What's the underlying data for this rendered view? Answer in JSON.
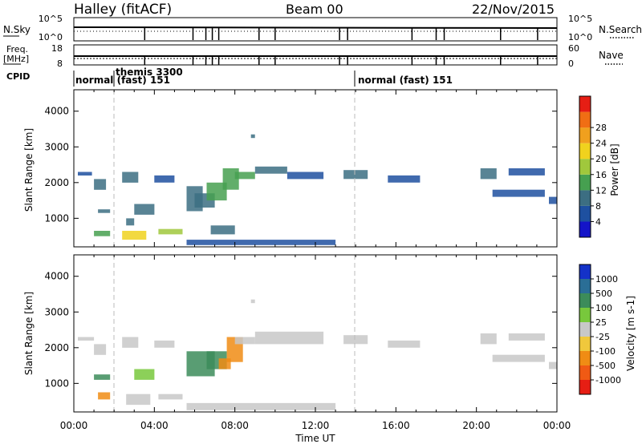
{
  "header": {
    "radar": "Halley (fitACF)",
    "beam": "Beam 00",
    "date": "22/Nov/2015"
  },
  "top_panels": {
    "nsky_label": "N.Sky",
    "nsearch_label": "N.Search",
    "nsky_ticks": [
      "10^5",
      "10^0"
    ],
    "nsearch_ticks": [
      "10^5",
      "10^0"
    ],
    "freq_label_1": "Freq.",
    "freq_label_2": "[MHz]",
    "freq_ticks": [
      "18",
      "8"
    ],
    "nave_label": "Nave",
    "nave_ticks": [
      "60",
      "0"
    ],
    "cpid_label": "CPID",
    "cpid_segments": [
      {
        "label": "normal (fast) 151",
        "start": "00:00",
        "end": "02:00"
      },
      {
        "label": "themis 3300",
        "start": "02:00",
        "end": "14:00"
      },
      {
        "label": "normal (fast) 151",
        "start": "14:00",
        "end": "24:00"
      }
    ],
    "cpid_text_a": "normal (fast) 151",
    "cpid_text_b": "themis 3300",
    "cpid_text_c": "normal (fast) 151"
  },
  "power_colorbar": {
    "label": "Power [dB]",
    "ticks": [
      "4",
      "8",
      "12",
      "16",
      "20",
      "24",
      "28"
    ],
    "colors": [
      "#1414c8",
      "#1e50a0",
      "#3c6e82",
      "#46a050",
      "#a0c83c",
      "#f0d21e",
      "#f0a01e",
      "#f06e14",
      "#e61e14"
    ]
  },
  "velocity_colorbar": {
    "label": "Velocity [m s-1]",
    "ticks": [
      "1000",
      "500",
      "100",
      "25",
      "-25",
      "-100",
      "-500",
      "-1000"
    ],
    "colors": [
      "#1432c8",
      "#2a6e96",
      "#3c8c5a",
      "#78c83c",
      "#c8c8c8",
      "#f0c83c",
      "#f08c14",
      "#f05a14",
      "#e61e14"
    ]
  },
  "chart_data": [
    {
      "type": "heatmap",
      "title": "",
      "xlabel": "Time UT",
      "ylabel": "Slant Range [km]",
      "xticks": [
        "00:00",
        "04:00",
        "08:00",
        "12:00",
        "16:00",
        "20:00",
        "00:00"
      ],
      "yticks": [
        "1000",
        "2000",
        "3000",
        "4000"
      ],
      "xlim_hours": [
        0,
        24
      ],
      "ylim": [
        200,
        4600
      ],
      "quantity": "Power [dB]",
      "cells": [
        [
          0.2,
          0.9,
          2300,
          2200,
          6
        ],
        [
          1.0,
          1.6,
          2100,
          1800,
          8
        ],
        [
          1.2,
          1.8,
          1250,
          1150,
          10
        ],
        [
          1.0,
          1.8,
          650,
          500,
          14
        ],
        [
          2.4,
          3.2,
          2300,
          2000,
          8
        ],
        [
          2.4,
          3.6,
          650,
          400,
          22
        ],
        [
          2.6,
          3.0,
          1000,
          800,
          10
        ],
        [
          3.0,
          4.0,
          1400,
          1100,
          9
        ],
        [
          4.0,
          5.0,
          2200,
          2000,
          7
        ],
        [
          4.2,
          5.4,
          700,
          550,
          18
        ],
        [
          5.6,
          6.4,
          1900,
          1200,
          11
        ],
        [
          6.0,
          7.0,
          1700,
          1300,
          9
        ],
        [
          6.6,
          7.6,
          2000,
          1500,
          12
        ],
        [
          6.8,
          8.0,
          800,
          550,
          10
        ],
        [
          7.4,
          8.2,
          2400,
          1800,
          14
        ],
        [
          8.0,
          9.0,
          2300,
          2100,
          12
        ],
        [
          8.8,
          9.0,
          3350,
          3250,
          9
        ],
        [
          9.0,
          10.6,
          2450,
          2250,
          8
        ],
        [
          10.6,
          12.4,
          2300,
          2100,
          7
        ],
        [
          13.4,
          14.6,
          2350,
          2100,
          8
        ],
        [
          15.6,
          17.2,
          2200,
          2000,
          6
        ],
        [
          20.2,
          21.0,
          2400,
          2100,
          8
        ],
        [
          21.6,
          23.4,
          2400,
          2200,
          7
        ],
        [
          20.8,
          23.4,
          1800,
          1600,
          6
        ],
        [
          23.6,
          24.0,
          1600,
          1400,
          7
        ],
        [
          5.6,
          13.0,
          400,
          250,
          4
        ]
      ]
    },
    {
      "type": "heatmap",
      "title": "",
      "xlabel": "Time UT",
      "ylabel": "Slant Range [km]",
      "xticks": [
        "00:00",
        "04:00",
        "08:00",
        "12:00",
        "16:00",
        "20:00",
        "00:00"
      ],
      "yticks": [
        "1000",
        "2000",
        "3000",
        "4000"
      ],
      "xlim_hours": [
        0,
        24
      ],
      "ylim": [
        200,
        4600
      ],
      "quantity": "Velocity [m s-1]",
      "cells": [
        [
          0.2,
          1.0,
          2300,
          2200,
          0
        ],
        [
          1.0,
          1.6,
          2100,
          1800,
          0
        ],
        [
          1.0,
          1.8,
          1250,
          1100,
          120
        ],
        [
          1.2,
          1.8,
          750,
          550,
          -200
        ],
        [
          2.4,
          3.2,
          2300,
          2000,
          0
        ],
        [
          2.6,
          3.8,
          700,
          400,
          0
        ],
        [
          3.0,
          4.0,
          1400,
          1100,
          60
        ],
        [
          4.0,
          5.0,
          2200,
          2000,
          0
        ],
        [
          4.2,
          5.4,
          700,
          550,
          0
        ],
        [
          5.6,
          7.0,
          1900,
          1200,
          300
        ],
        [
          6.6,
          7.6,
          1900,
          1400,
          250
        ],
        [
          7.2,
          7.8,
          1700,
          1400,
          -150
        ],
        [
          7.6,
          8.4,
          2300,
          1600,
          -350
        ],
        [
          8.0,
          9.0,
          2300,
          2100,
          0
        ],
        [
          8.8,
          9.0,
          3350,
          3250,
          0
        ],
        [
          9.0,
          12.4,
          2450,
          2100,
          0
        ],
        [
          13.4,
          14.6,
          2350,
          2100,
          0
        ],
        [
          15.6,
          17.2,
          2200,
          2000,
          0
        ],
        [
          20.2,
          21.0,
          2400,
          2100,
          0
        ],
        [
          21.6,
          23.4,
          2400,
          2200,
          0
        ],
        [
          20.8,
          23.4,
          1800,
          1600,
          0
        ],
        [
          23.6,
          24.0,
          1600,
          1400,
          0
        ],
        [
          5.6,
          13.0,
          450,
          250,
          0
        ]
      ]
    }
  ]
}
